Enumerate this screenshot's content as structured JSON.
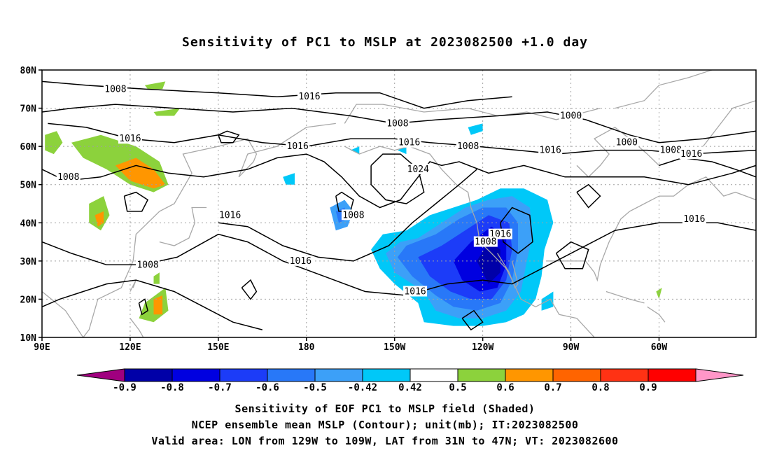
{
  "title": "Sensitivity of PC1 to MSLP at 2023082500 +1.0 day",
  "lat_labels": [
    "80N",
    "70N",
    "60N",
    "50N",
    "40N",
    "30N",
    "20N",
    "10N"
  ],
  "lon_labels": [
    "90E",
    "120E",
    "150E",
    "180",
    "150W",
    "120W",
    "90W",
    "60W"
  ],
  "contour_labels": [
    {
      "text": "1008",
      "lon": 115,
      "lat": 75
    },
    {
      "text": "1016",
      "lon": 181,
      "lat": 73
    },
    {
      "text": "1008",
      "lon": 211,
      "lat": 66
    },
    {
      "text": "1000",
      "lon": 270,
      "lat": 68
    },
    {
      "text": "1000",
      "lon": 289,
      "lat": 61
    },
    {
      "text": "1016",
      "lon": 120,
      "lat": 62
    },
    {
      "text": "1016",
      "lon": 177,
      "lat": 60
    },
    {
      "text": "1016",
      "lon": 215,
      "lat": 61
    },
    {
      "text": "1008",
      "lon": 235,
      "lat": 60
    },
    {
      "text": "1016",
      "lon": 263,
      "lat": 59
    },
    {
      "text": "1008",
      "lon": 304,
      "lat": 59
    },
    {
      "text": "1016",
      "lon": 311,
      "lat": 58
    },
    {
      "text": "1008",
      "lon": 99,
      "lat": 52
    },
    {
      "text": "1024",
      "lon": 218,
      "lat": 54
    },
    {
      "text": "1016",
      "lon": 154,
      "lat": 42
    },
    {
      "text": "1008",
      "lon": 196,
      "lat": 42
    },
    {
      "text": "1016",
      "lon": 246,
      "lat": 37
    },
    {
      "text": "1008",
      "lon": 241,
      "lat": 35
    },
    {
      "text": "1016",
      "lon": 312,
      "lat": 41
    },
    {
      "text": "1008",
      "lon": 126,
      "lat": 29
    },
    {
      "text": "1016",
      "lon": 178,
      "lat": 30
    },
    {
      "text": "1016",
      "lon": 217,
      "lat": 22
    }
  ],
  "colorbar": {
    "levels": [
      "-0.9",
      "-0.8",
      "-0.7",
      "-0.6",
      "-0.5",
      "-0.42",
      "0.42",
      "0.5",
      "0.6",
      "0.7",
      "0.8",
      "0.9"
    ],
    "colors": [
      "#a0007f",
      "#0000a8",
      "#0000e0",
      "#1c3cf8",
      "#2878f8",
      "#3ca0f8",
      "#00c8f8",
      "#ffffff",
      "#8cd23c",
      "#ff9600",
      "#ff6400",
      "#ff3214",
      "#ff0000",
      "#ff96c8"
    ]
  },
  "shaded_colors": {
    "neg_09": "#0000a8",
    "neg_08": "#0000e0",
    "neg_07": "#1c3cf8",
    "neg_06": "#2878f8",
    "neg_05": "#3ca0f8",
    "neg_042": "#00c8f8",
    "pos_042": "#8cd23c",
    "pos_05": "#ff9600",
    "pos_06": "#ff6400",
    "neg_extreme": "#a0007f"
  },
  "footer": {
    "line1": "Sensitivity of EOF PC1 to MSLP field (Shaded)",
    "line2": "NCEP ensemble mean MSLP (Contour); unit(mb); IT:2023082500",
    "line3": "Valid area: LON from 129W to 109W, LAT from 31N to 47N; VT: 2023082600"
  }
}
